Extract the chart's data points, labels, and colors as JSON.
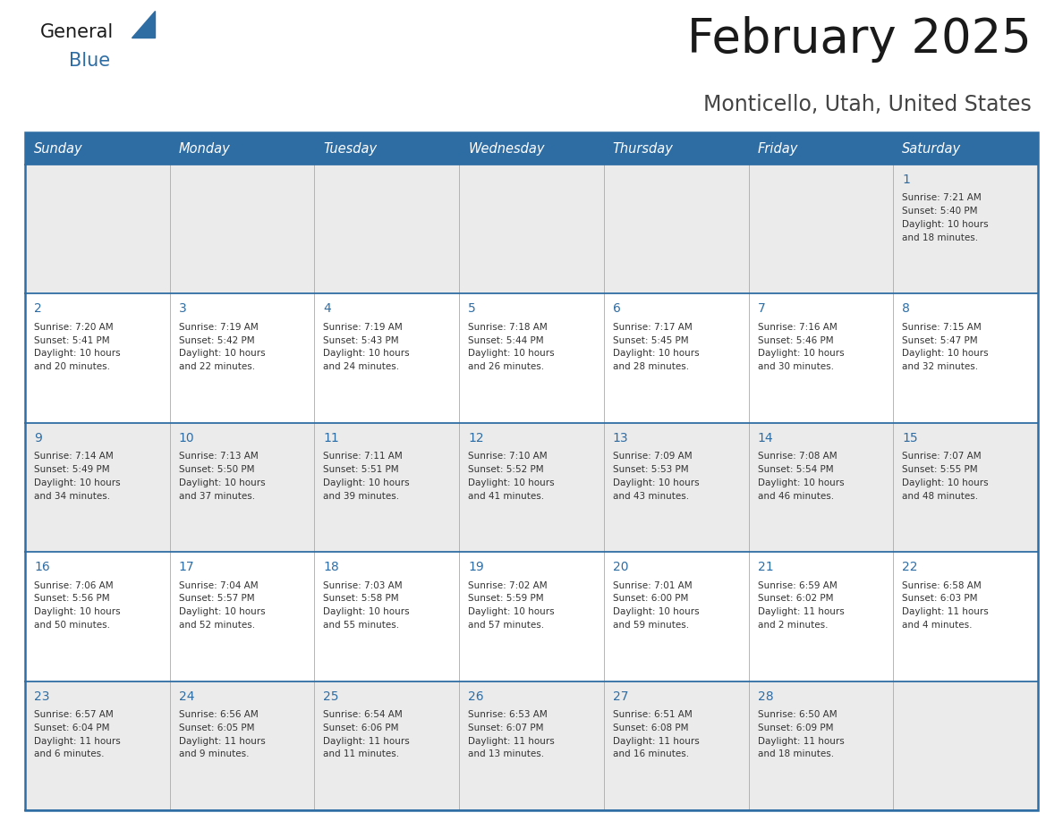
{
  "title": "February 2025",
  "subtitle": "Monticello, Utah, United States",
  "header_bg": "#2E6DA4",
  "header_text_color": "#FFFFFF",
  "cell_bg_row0": "#EBEBEB",
  "cell_bg_row1": "#FFFFFF",
  "cell_bg_row2": "#EBEBEB",
  "cell_bg_row3": "#FFFFFF",
  "cell_bg_row4": "#EBEBEB",
  "border_color": "#2E6DA4",
  "divider_color": "#AAAAAA",
  "days_of_week": [
    "Sunday",
    "Monday",
    "Tuesday",
    "Wednesday",
    "Thursday",
    "Friday",
    "Saturday"
  ],
  "title_color": "#1a1a1a",
  "subtitle_color": "#444444",
  "day_number_color": "#2E6DA4",
  "info_text_color": "#333333",
  "logo_general_color": "#1a1a1a",
  "logo_blue_color": "#2E6DA4",
  "logo_triangle_color": "#2E6DA4",
  "calendar": [
    [
      null,
      null,
      null,
      null,
      null,
      null,
      {
        "day": 1,
        "sunrise": "7:21 AM",
        "sunset": "5:40 PM",
        "daylight": "10 hours and 18 minutes."
      }
    ],
    [
      {
        "day": 2,
        "sunrise": "7:20 AM",
        "sunset": "5:41 PM",
        "daylight": "10 hours and 20 minutes."
      },
      {
        "day": 3,
        "sunrise": "7:19 AM",
        "sunset": "5:42 PM",
        "daylight": "10 hours and 22 minutes."
      },
      {
        "day": 4,
        "sunrise": "7:19 AM",
        "sunset": "5:43 PM",
        "daylight": "10 hours and 24 minutes."
      },
      {
        "day": 5,
        "sunrise": "7:18 AM",
        "sunset": "5:44 PM",
        "daylight": "10 hours and 26 minutes."
      },
      {
        "day": 6,
        "sunrise": "7:17 AM",
        "sunset": "5:45 PM",
        "daylight": "10 hours and 28 minutes."
      },
      {
        "day": 7,
        "sunrise": "7:16 AM",
        "sunset": "5:46 PM",
        "daylight": "10 hours and 30 minutes."
      },
      {
        "day": 8,
        "sunrise": "7:15 AM",
        "sunset": "5:47 PM",
        "daylight": "10 hours and 32 minutes."
      }
    ],
    [
      {
        "day": 9,
        "sunrise": "7:14 AM",
        "sunset": "5:49 PM",
        "daylight": "10 hours and 34 minutes."
      },
      {
        "day": 10,
        "sunrise": "7:13 AM",
        "sunset": "5:50 PM",
        "daylight": "10 hours and 37 minutes."
      },
      {
        "day": 11,
        "sunrise": "7:11 AM",
        "sunset": "5:51 PM",
        "daylight": "10 hours and 39 minutes."
      },
      {
        "day": 12,
        "sunrise": "7:10 AM",
        "sunset": "5:52 PM",
        "daylight": "10 hours and 41 minutes."
      },
      {
        "day": 13,
        "sunrise": "7:09 AM",
        "sunset": "5:53 PM",
        "daylight": "10 hours and 43 minutes."
      },
      {
        "day": 14,
        "sunrise": "7:08 AM",
        "sunset": "5:54 PM",
        "daylight": "10 hours and 46 minutes."
      },
      {
        "day": 15,
        "sunrise": "7:07 AM",
        "sunset": "5:55 PM",
        "daylight": "10 hours and 48 minutes."
      }
    ],
    [
      {
        "day": 16,
        "sunrise": "7:06 AM",
        "sunset": "5:56 PM",
        "daylight": "10 hours and 50 minutes."
      },
      {
        "day": 17,
        "sunrise": "7:04 AM",
        "sunset": "5:57 PM",
        "daylight": "10 hours and 52 minutes."
      },
      {
        "day": 18,
        "sunrise": "7:03 AM",
        "sunset": "5:58 PM",
        "daylight": "10 hours and 55 minutes."
      },
      {
        "day": 19,
        "sunrise": "7:02 AM",
        "sunset": "5:59 PM",
        "daylight": "10 hours and 57 minutes."
      },
      {
        "day": 20,
        "sunrise": "7:01 AM",
        "sunset": "6:00 PM",
        "daylight": "10 hours and 59 minutes."
      },
      {
        "day": 21,
        "sunrise": "6:59 AM",
        "sunset": "6:02 PM",
        "daylight": "11 hours and 2 minutes."
      },
      {
        "day": 22,
        "sunrise": "6:58 AM",
        "sunset": "6:03 PM",
        "daylight": "11 hours and 4 minutes."
      }
    ],
    [
      {
        "day": 23,
        "sunrise": "6:57 AM",
        "sunset": "6:04 PM",
        "daylight": "11 hours and 6 minutes."
      },
      {
        "day": 24,
        "sunrise": "6:56 AM",
        "sunset": "6:05 PM",
        "daylight": "11 hours and 9 minutes."
      },
      {
        "day": 25,
        "sunrise": "6:54 AM",
        "sunset": "6:06 PM",
        "daylight": "11 hours and 11 minutes."
      },
      {
        "day": 26,
        "sunrise": "6:53 AM",
        "sunset": "6:07 PM",
        "daylight": "11 hours and 13 minutes."
      },
      {
        "day": 27,
        "sunrise": "6:51 AM",
        "sunset": "6:08 PM",
        "daylight": "11 hours and 16 minutes."
      },
      {
        "day": 28,
        "sunrise": "6:50 AM",
        "sunset": "6:09 PM",
        "daylight": "11 hours and 18 minutes."
      },
      null
    ]
  ]
}
